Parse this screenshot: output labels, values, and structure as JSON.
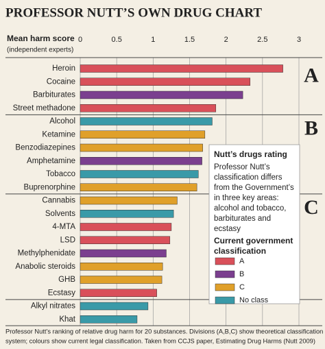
{
  "chart_data": {
    "type": "bar",
    "orientation": "horizontal",
    "title": "PROFESSOR NUTT’S OWN DRUG CHART",
    "axis_label": "Mean harm score",
    "axis_sublabel": "(independent experts)",
    "categories": [
      "Heroin",
      "Cocaine",
      "Barbiturates",
      "Street methadone",
      "Alcohol",
      "Ketamine",
      "Benzodiazepines",
      "Amphetamine",
      "Tobacco",
      "Buprenorphine",
      "Cannabis",
      "Solvents",
      "4-MTA",
      "LSD",
      "Methylphenidate",
      "Anabolic steroids",
      "GHB",
      "Ecstasy",
      "Alkyl nitrates",
      "Khat"
    ],
    "values": [
      2.78,
      2.33,
      2.23,
      1.86,
      1.81,
      1.71,
      1.68,
      1.67,
      1.62,
      1.6,
      1.33,
      1.28,
      1.25,
      1.23,
      1.18,
      1.13,
      1.12,
      1.05,
      0.93,
      0.78
    ],
    "colors": [
      "#d9505a",
      "#d9505a",
      "#7b3f8f",
      "#d9505a",
      "#3a9aa8",
      "#e0a02a",
      "#e0a02a",
      "#7b3f8f",
      "#3a9aa8",
      "#e0a02a",
      "#e0a02a",
      "#3a9aa8",
      "#d9505a",
      "#d9505a",
      "#7b3f8f",
      "#e0a02a",
      "#e0a02a",
      "#d9505a",
      "#3a9aa8",
      "#3a9aa8"
    ],
    "divisions": [
      {
        "label": "A",
        "size": 4
      },
      {
        "label": "B",
        "size": 6
      },
      {
        "label": "C",
        "size": 8
      }
    ],
    "xlim": [
      0,
      3
    ],
    "xticks": [
      0,
      0.5,
      1,
      1.5,
      2,
      2.5,
      3
    ],
    "grid": true,
    "info_box": {
      "title": "Nutt’s drugs rating",
      "text": [
        "Professor Nutt’s",
        "classification differs",
        "from the Government’s",
        "in three key areas:",
        "alcohol and tobacco,",
        "barbiturates and",
        "ecstasy"
      ],
      "legend_title": [
        "Current government",
        "classification"
      ],
      "legend": [
        {
          "name": "A",
          "color": "#d9505a"
        },
        {
          "name": "B",
          "color": "#7b3f8f"
        },
        {
          "name": "C",
          "color": "#e0a02a"
        },
        {
          "name": "No class",
          "color": "#3a9aa8"
        }
      ]
    },
    "footnote": [
      "Professor Nutt’s ranking of relative drug harm for 20 substances. Divisions (A,B,C) show theoretical classification",
      "system; colours show current legal classification. Taken from CCJS paper, Estimating Drug Harms (Nutt 2009)"
    ]
  }
}
